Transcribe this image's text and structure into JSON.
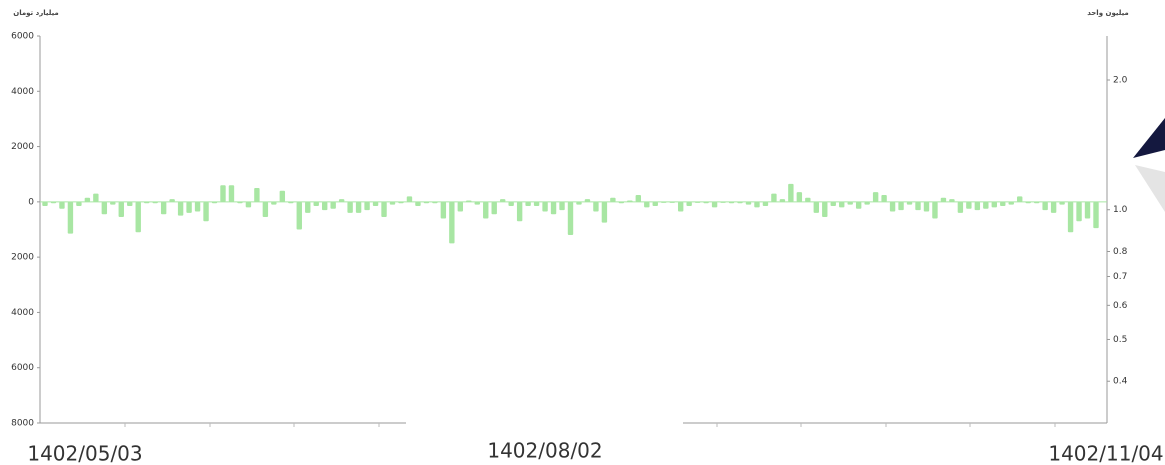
{
  "chart_data": {
    "type": "bar",
    "y_label": "میلیارد تومان",
    "y2_label": "میلیون واحد",
    "date_labels": [
      "1402/05/03",
      "1402/08/02",
      "1402/11/04"
    ],
    "color": "#a8e6a3",
    "ylim": [
      -8000,
      6000
    ],
    "yticks": [
      {
        "value": -8000,
        "label": "8000"
      },
      {
        "value": -6000,
        "label": "6000"
      },
      {
        "value": -4000,
        "label": "4000"
      },
      {
        "value": -2000,
        "label": "2000"
      },
      0,
      2000,
      4000,
      6000
    ],
    "y2lim": [
      0.32,
      2.53
    ],
    "y2scale": "log",
    "y2ticks": [
      0.4,
      0.5,
      0.6,
      0.7,
      0.8,
      {
        "value": 1,
        "label": "1.0"
      },
      {
        "value": 2,
        "label": "2.0"
      }
    ],
    "values": [
      -150,
      -50,
      -250,
      -1150,
      -150,
      150,
      300,
      -450,
      -100,
      -550,
      -150,
      -1100,
      -50,
      -50,
      -450,
      100,
      -500,
      -400,
      -350,
      -700,
      -50,
      600,
      600,
      -50,
      -200,
      500,
      -550,
      -100,
      400,
      -50,
      -1000,
      -400,
      -150,
      -300,
      -250,
      100,
      -400,
      -400,
      -300,
      -150,
      -550,
      -100,
      -50,
      200,
      -150,
      -50,
      -50,
      -600,
      -1500,
      -350,
      50,
      -100,
      -600,
      -450,
      100,
      -150,
      -700,
      -150,
      -150,
      -350,
      -450,
      -300,
      -1200,
      -100,
      100,
      -350,
      -750,
      150,
      -50,
      50,
      250,
      -200,
      -150,
      0,
      0,
      -350,
      -150,
      0,
      -50,
      -200,
      0,
      -50,
      -50,
      -100,
      -200,
      -150,
      300,
      100,
      650,
      350,
      150,
      -400,
      -550,
      -150,
      -200,
      -100,
      -250,
      -100,
      350,
      250,
      -350,
      -300,
      -100,
      -300,
      -350,
      -600,
      150,
      100,
      -400,
      -250,
      -300,
      -250,
      -200,
      -150,
      -100,
      200,
      -50,
      -50,
      -300,
      -400,
      -100,
      -1100,
      -700,
      -600,
      -950
    ]
  }
}
